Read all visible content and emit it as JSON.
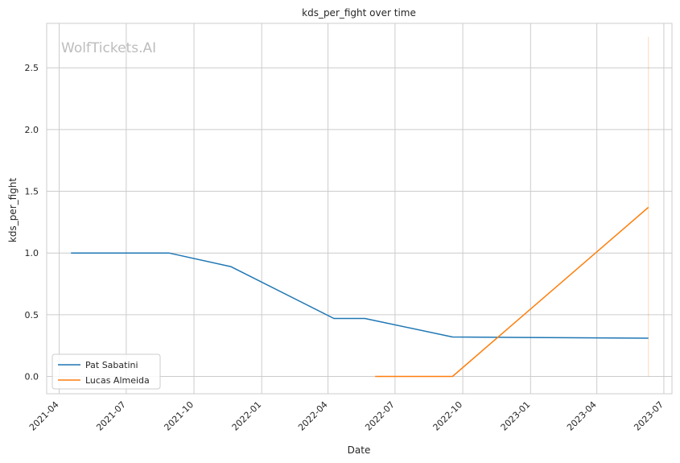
{
  "chart_data": {
    "type": "line",
    "title": "kds_per_fight over time",
    "xlabel": "Date",
    "ylabel": "kds_per_fight",
    "watermark": "WolfTickets.AI",
    "xlim": [
      "2021-03-15",
      "2023-07-12"
    ],
    "ylim": [
      -0.14,
      2.86
    ],
    "grid": true,
    "legend_position": "lower-left",
    "x_ticks": [
      "2021-04",
      "2021-07",
      "2021-10",
      "2022-01",
      "2022-04",
      "2022-07",
      "2022-10",
      "2023-01",
      "2023-04",
      "2023-07"
    ],
    "y_ticks": [
      "0.0",
      "0.5",
      "1.0",
      "1.5",
      "2.0",
      "2.5"
    ],
    "series": [
      {
        "name": "Pat Sabatini",
        "color": "#1f77b4",
        "points": [
          {
            "x": "2021-04-17",
            "y": 1.0
          },
          {
            "x": "2021-08-28",
            "y": 1.0
          },
          {
            "x": "2021-11-20",
            "y": 0.89
          },
          {
            "x": "2022-04-09",
            "y": 0.47
          },
          {
            "x": "2022-05-21",
            "y": 0.47
          },
          {
            "x": "2022-09-17",
            "y": 0.32
          },
          {
            "x": "2023-06-10",
            "y": 0.31
          }
        ]
      },
      {
        "name": "Lucas Almeida",
        "color": "#ff7f0e",
        "points": [
          {
            "x": "2022-06-04",
            "y": 0.0
          },
          {
            "x": "2022-09-17",
            "y": 0.0
          },
          {
            "x": "2023-06-10",
            "y": 1.37
          }
        ]
      }
    ],
    "vline": {
      "x": "2023-06-10",
      "y_from": 0.0,
      "y_to": 2.75,
      "color": "#ff7f0e"
    }
  }
}
